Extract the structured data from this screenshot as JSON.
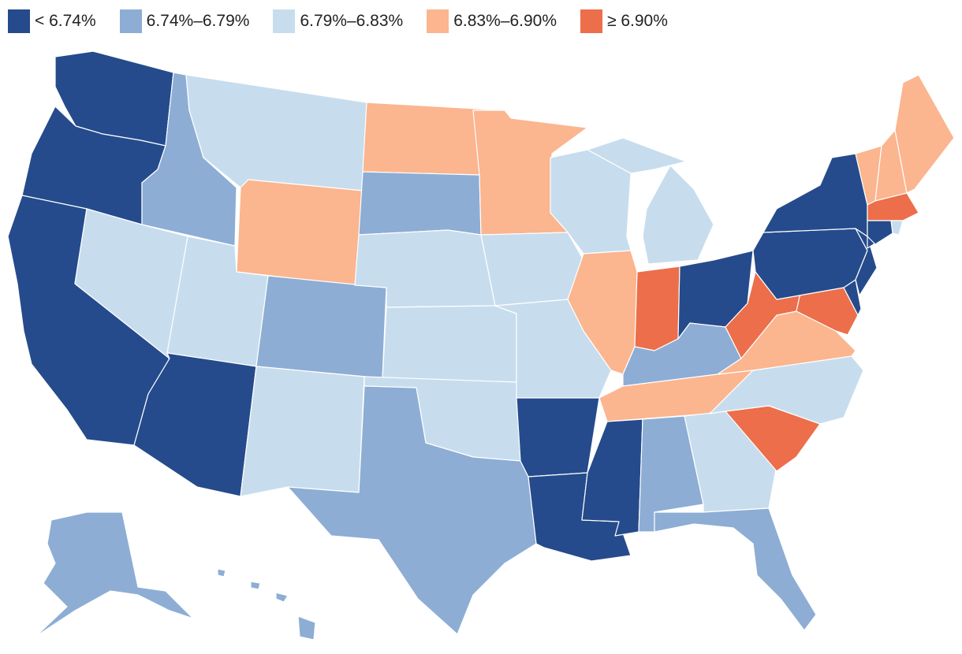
{
  "colors": {
    "bin1": "#254b8c",
    "bin2": "#8dadd4",
    "bin3": "#c7ddee",
    "bin4": "#fbb58f",
    "bin5": "#ec6e4a"
  },
  "legend": [
    {
      "label": "< 6.74%",
      "color": "#254b8c"
    },
    {
      "label": "6.74%–6.79%",
      "color": "#8dadd4"
    },
    {
      "label": "6.79%–6.83%",
      "color": "#c7ddee"
    },
    {
      "label": "6.83%–6.90%",
      "color": "#fbb58f"
    },
    {
      "label": "≥ 6.90%",
      "color": "#ec6e4a"
    }
  ],
  "states": {
    "WA": "bin1",
    "OR": "bin1",
    "CA": "bin1",
    "AZ": "bin1",
    "AR": "bin1",
    "LA": "bin1",
    "MS": "bin1",
    "OH": "bin1",
    "PA": "bin1",
    "NY": "bin1",
    "NJ": "bin1",
    "DE": "bin1",
    "CT": "bin1",
    "VT": "bin4",
    "ID": "bin2",
    "CO": "bin2",
    "SD": "bin2",
    "TX": "bin2",
    "AL": "bin2",
    "FL": "bin2",
    "KY": "bin2",
    "AK": "bin2",
    "HI": "bin2",
    "MT": "bin3",
    "NV": "bin3",
    "UT": "bin3",
    "NM": "bin3",
    "NE": "bin3",
    "KS": "bin3",
    "OK": "bin3",
    "IA": "bin3",
    "MO": "bin3",
    "WI": "bin3",
    "MI": "bin3",
    "GA": "bin3",
    "NC": "bin3",
    "RI": "bin3",
    "ND": "bin4",
    "MN": "bin4",
    "WY": "bin4",
    "IL": "bin4",
    "TN": "bin4",
    "VA": "bin4",
    "ME": "bin4",
    "NH": "bin4",
    "IN": "bin5",
    "WV": "bin5",
    "SC": "bin5",
    "MD": "bin5",
    "MA": "bin5"
  }
}
